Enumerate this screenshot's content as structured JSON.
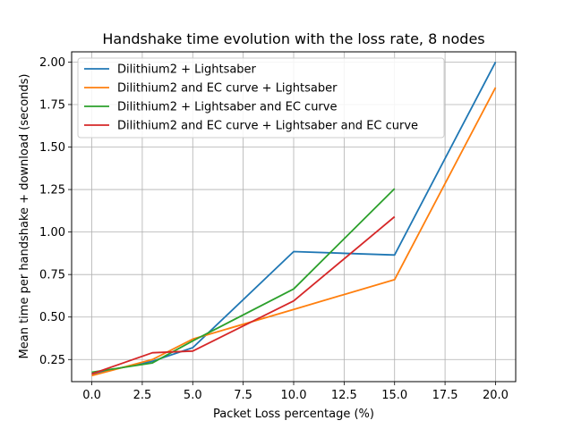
{
  "chart_data": {
    "type": "line",
    "title": "Handshake time evolution with the loss rate, 8 nodes",
    "xlabel": "Packet Loss percentage (%)",
    "ylabel": "Mean time per handshake + download (seconds)",
    "xlim": [
      -1,
      21
    ],
    "ylim": [
      0.12,
      2.06
    ],
    "xticks": [
      0.0,
      2.5,
      5.0,
      7.5,
      10.0,
      12.5,
      15.0,
      17.5,
      20.0
    ],
    "xtick_labels": [
      "0.0",
      "2.5",
      "5.0",
      "7.5",
      "10.0",
      "12.5",
      "15.0",
      "17.5",
      "20.0"
    ],
    "yticks": [
      0.25,
      0.5,
      0.75,
      1.0,
      1.25,
      1.5,
      1.75,
      2.0
    ],
    "ytick_labels": [
      "0.25",
      "0.50",
      "0.75",
      "1.00",
      "1.25",
      "1.50",
      "1.75",
      "2.00"
    ],
    "grid": true,
    "legend_position": "top-left",
    "series": [
      {
        "name": "Dilithium2 + Lightsaber",
        "color": "#1f77b4",
        "x": [
          0,
          3,
          5,
          10,
          15,
          20
        ],
        "y": [
          0.165,
          0.24,
          0.32,
          0.885,
          0.865,
          2.0
        ]
      },
      {
        "name": "Dilithium2 and EC curve + Lightsaber",
        "color": "#ff7f0e",
        "x": [
          0,
          3,
          5,
          10,
          15,
          20
        ],
        "y": [
          0.155,
          0.25,
          0.37,
          0.545,
          0.72,
          1.85
        ]
      },
      {
        "name": "Dilithium2 + Lightsaber and EC curve",
        "color": "#2ca02c",
        "x": [
          0,
          3,
          5,
          10,
          15
        ],
        "y": [
          0.175,
          0.23,
          0.36,
          0.665,
          1.255
        ]
      },
      {
        "name": "Dilithium2 and EC curve + Lightsaber and EC curve",
        "color": "#d62728",
        "x": [
          0,
          3,
          5,
          10,
          15
        ],
        "y": [
          0.165,
          0.29,
          0.3,
          0.595,
          1.09
        ]
      }
    ]
  }
}
